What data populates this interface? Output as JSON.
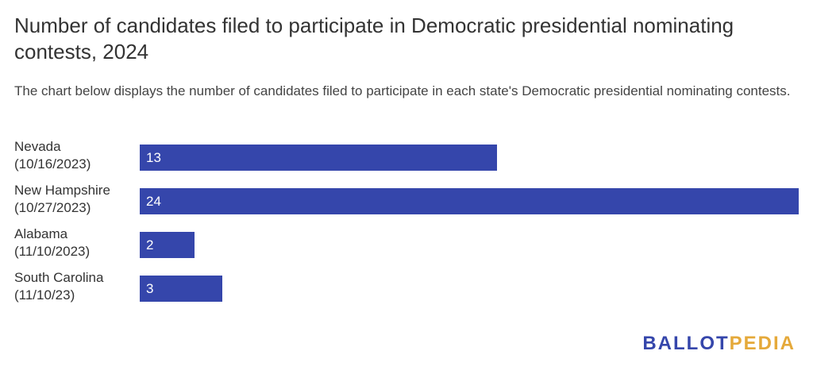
{
  "title": "Number of candidates filed to participate in Democratic presidential nominating contests, 2024",
  "subtitle": "The chart below displays the number of candidates filed to participate in each state's Democratic presidential nominating contests.",
  "brand": {
    "part1": "BALLOT",
    "part2": "PEDIA"
  },
  "colors": {
    "bar": "#3546ab",
    "brand_blue": "#3546ab",
    "brand_gold": "#e5a93a"
  },
  "chart_data": {
    "type": "bar",
    "orientation": "horizontal",
    "title": "Number of candidates filed to participate in Democratic presidential nominating contests, 2024",
    "categories": [
      [
        "Nevada",
        "(10/16/2023)"
      ],
      [
        "New Hampshire",
        "(10/27/2023)"
      ],
      [
        "Alabama",
        "(11/10/2023)"
      ],
      [
        "South Carolina",
        "(11/10/23)"
      ]
    ],
    "values": [
      13,
      24,
      2,
      3
    ],
    "xlim": [
      0,
      24
    ],
    "grid": false,
    "data_labels": true
  }
}
